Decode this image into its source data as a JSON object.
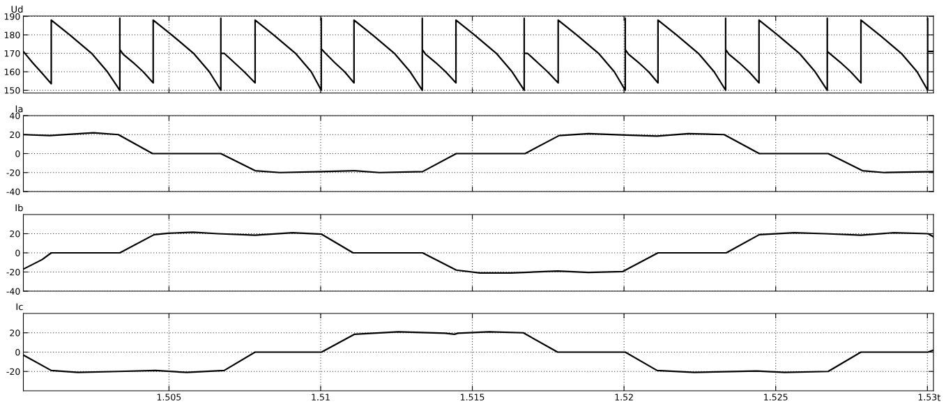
{
  "chart_data": [
    {
      "type": "line",
      "title": "Ud",
      "xlim": [
        1.5002,
        1.5302
      ],
      "xticks": [
        1.505,
        1.51,
        1.515,
        1.52,
        1.525,
        1.53
      ],
      "ylim": [
        148.5,
        190.2
      ],
      "yticks": [
        150,
        160,
        170,
        180,
        190
      ],
      "grid": true,
      "tick_labels": "y",
      "series": [
        {
          "color": "#000000",
          "x": [
            1.5002,
            1.5005,
            1.5008,
            1.50112,
            1.50112,
            1.50173,
            1.50245,
            1.50297,
            1.50338,
            1.50338,
            1.50338,
            1.50349,
            1.50382,
            1.50415,
            1.50448,
            1.50448,
            1.50509,
            1.50581,
            1.50633,
            1.50671,
            1.50671,
            1.50671,
            1.50682,
            1.50715,
            1.50748,
            1.50784,
            1.50784,
            1.50845,
            1.50917,
            1.50969,
            1.51002,
            1.51002,
            1.51002,
            1.51013,
            1.51046,
            1.51079,
            1.5111,
            1.5111,
            1.51171,
            1.51243,
            1.51295,
            1.51335,
            1.51335,
            1.51335,
            1.51346,
            1.51379,
            1.51412,
            1.51446,
            1.51446,
            1.51507,
            1.51579,
            1.51631,
            1.51671,
            1.51671,
            1.51671,
            1.51682,
            1.51715,
            1.51748,
            1.51783,
            1.51783,
            1.51844,
            1.51916,
            1.51968,
            1.52004,
            1.52004,
            1.52004,
            1.52015,
            1.52048,
            1.52081,
            1.52112,
            1.52112,
            1.52173,
            1.52245,
            1.52297,
            1.52335,
            1.52335,
            1.52335,
            1.52346,
            1.52379,
            1.52412,
            1.52445,
            1.52445,
            1.52506,
            1.52578,
            1.5263,
            1.5267,
            1.5267,
            1.5267,
            1.52681,
            1.52714,
            1.52747,
            1.52781,
            1.52781,
            1.52842,
            1.52914,
            1.52966,
            1.53001,
            1.53001,
            1.53001,
            1.5302
          ],
          "values": [
            171,
            165,
            159.5,
            153.5,
            188,
            180,
            170,
            160,
            150,
            189,
            172,
            169.5,
            165,
            160,
            154,
            188,
            180,
            170,
            160,
            150,
            189,
            170,
            170,
            165,
            160,
            154,
            188,
            180,
            170,
            160,
            150,
            189,
            172.5,
            170.5,
            165,
            160,
            154,
            188,
            180,
            170,
            160,
            150,
            189,
            172,
            169.5,
            165,
            160,
            154,
            188,
            180,
            170,
            160,
            150,
            189,
            170,
            170,
            165,
            160,
            154,
            188,
            180,
            170,
            160,
            150,
            189,
            172,
            169.5,
            165,
            160,
            154,
            188,
            180,
            170,
            160,
            150,
            189,
            172,
            169.5,
            165,
            160,
            154,
            188,
            180,
            170,
            160,
            150,
            189,
            171,
            169.5,
            165,
            160,
            154,
            188,
            180,
            170,
            160,
            150,
            189,
            171,
            171
          ]
        }
      ]
    },
    {
      "type": "line",
      "title": "Ia",
      "xlim": [
        1.5002,
        1.5302
      ],
      "xticks": [
        1.505,
        1.51,
        1.515,
        1.52,
        1.525,
        1.53
      ],
      "ylim": [
        -40,
        40
      ],
      "yticks": [
        -40,
        -20,
        0,
        20,
        40
      ],
      "grid": true,
      "tick_labels": "y",
      "series": [
        {
          "color": "#000000",
          "x": [
            1.5002,
            1.50107,
            1.50251,
            1.50333,
            1.50446,
            1.50671,
            1.50784,
            1.50866,
            1.51003,
            1.51112,
            1.51194,
            1.51336,
            1.51447,
            1.51674,
            1.51786,
            1.51883,
            1.52004,
            1.52109,
            1.52212,
            1.5233,
            1.52446,
            1.52673,
            1.52786,
            1.52858,
            1.53019
          ],
          "values": [
            20,
            19,
            22,
            20,
            0,
            0,
            -18,
            -20,
            -19,
            -18,
            -20,
            -19,
            0,
            0,
            19,
            21,
            19.5,
            18.5,
            21,
            20,
            0,
            0,
            -18,
            -20,
            -19
          ]
        }
      ]
    },
    {
      "type": "line",
      "title": "Ib",
      "xlim": [
        1.5002,
        1.5302
      ],
      "xticks": [
        1.505,
        1.51,
        1.515,
        1.52,
        1.525,
        1.53
      ],
      "ylim": [
        -40,
        40
      ],
      "yticks": [
        -40,
        -20,
        0,
        20
      ],
      "grid": true,
      "tick_labels": "y",
      "series": [
        {
          "color": "#000000",
          "x": [
            1.5002,
            1.50082,
            1.50112,
            1.50338,
            1.50451,
            1.50497,
            1.50579,
            1.50661,
            1.50784,
            1.50907,
            1.51003,
            1.51107,
            1.51336,
            1.51447,
            1.51525,
            1.51627,
            1.51781,
            1.51883,
            1.51996,
            1.52112,
            1.52337,
            1.52446,
            1.52561,
            1.52663,
            1.52781,
            1.52889,
            1.53002,
            1.53019
          ],
          "values": [
            -17,
            -7,
            0,
            0,
            19,
            20.5,
            21.5,
            20,
            18.5,
            21,
            19.5,
            0,
            0,
            -18,
            -21,
            -21,
            -19,
            -20.5,
            -19.5,
            0,
            0,
            19,
            21,
            20,
            18.5,
            21,
            20,
            17
          ]
        }
      ]
    },
    {
      "type": "line",
      "title": "Ic",
      "xlabel": "t",
      "xlim": [
        1.5002,
        1.5302
      ],
      "xticks": [
        1.505,
        1.51,
        1.515,
        1.52,
        1.525,
        1.53
      ],
      "ylim": [
        -40,
        40
      ],
      "yticks": [
        -20,
        0,
        20
      ],
      "grid": true,
      "series": [
        {
          "color": "#000000",
          "x": [
            1.5002,
            1.50112,
            1.502,
            1.50333,
            1.50456,
            1.50559,
            1.50682,
            1.50784,
            1.51003,
            1.51112,
            1.51256,
            1.5141,
            1.51441,
            1.51453,
            1.51555,
            1.51668,
            1.51781,
            1.52004,
            1.52109,
            1.52232,
            1.52437,
            1.5253,
            1.52673,
            1.52781,
            1.53002,
            1.53019
          ],
          "values": [
            -3,
            -19,
            -21,
            -20,
            -19,
            -21,
            -19,
            0,
            0,
            18.5,
            21,
            19.5,
            18.5,
            19.5,
            21,
            20,
            0,
            0,
            -19,
            -21,
            -19.5,
            -21,
            -20,
            0,
            0,
            2
          ]
        }
      ]
    }
  ]
}
